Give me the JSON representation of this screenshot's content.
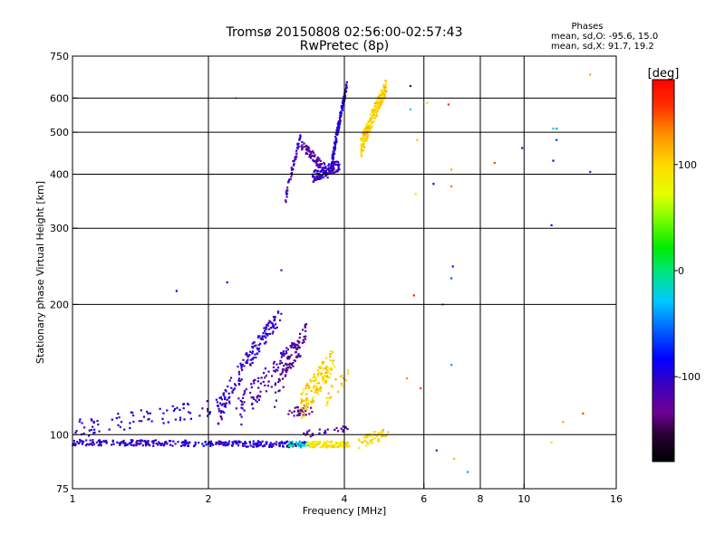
{
  "chart_data": {
    "type": "scatter",
    "title": "Tromsø 20150808 02:56:00-02:57:43",
    "subtitle": "RwPretec (8p)",
    "xlabel": "Frequency [MHz]",
    "ylabel": "Stationary phase Virtual Height [km]",
    "x_scale": "log2",
    "y_scale": "log",
    "xlim": [
      1,
      16
    ],
    "ylim": [
      75,
      750
    ],
    "x_ticks": [
      1,
      2,
      4,
      6,
      8,
      10,
      16
    ],
    "x_tick_labels": [
      "1",
      "2",
      "4",
      "6",
      "8",
      "10",
      "16"
    ],
    "x_gridlines": [
      2,
      4,
      6,
      8,
      10
    ],
    "y_ticks": [
      75,
      100,
      200,
      300,
      400,
      500,
      600,
      750
    ],
    "y_tick_labels": [
      "75",
      "100",
      "200",
      "300",
      "400",
      "500",
      "600",
      "750"
    ],
    "y_gridlines": [
      100,
      200,
      300,
      400,
      500,
      600
    ],
    "grid": true,
    "stats": {
      "heading": "Phases",
      "line_o": "mean, sd,O: -95.6, 15.0",
      "line_x": "mean, sd,X:  91.7, 19.2"
    },
    "colorbar": {
      "label": "[deg]",
      "range": [
        -180,
        180
      ],
      "ticks": [
        -100,
        0,
        100
      ],
      "tick_labels": [
        "-100",
        "0",
        "100"
      ]
    },
    "clusters": [
      {
        "f_start": 1.0,
        "f_end": 3.3,
        "h_start": 96,
        "h_end": 95,
        "jitter": 1.5,
        "n": 320,
        "phase": -100
      },
      {
        "f_start": 3.0,
        "f_end": 3.35,
        "h_start": 95,
        "h_end": 95,
        "jitter": 1.5,
        "n": 30,
        "phase": -10
      },
      {
        "f_start": 3.3,
        "f_end": 4.1,
        "h_start": 95,
        "h_end": 95,
        "jitter": 1.5,
        "n": 110,
        "phase": 90
      },
      {
        "f_start": 4.3,
        "f_end": 5.0,
        "h_start": 96,
        "h_end": 101,
        "jitter": 3,
        "n": 50,
        "phase": 95
      },
      {
        "f_start": 1.0,
        "f_end": 2.2,
        "h_start": 103,
        "h_end": 117,
        "jitter": 5,
        "n": 90,
        "phase": -100
      },
      {
        "f_start": 2.1,
        "f_end": 2.9,
        "h_start": 112,
        "h_end": 190,
        "jitter": 8,
        "n": 150,
        "phase": -105
      },
      {
        "f_start": 2.3,
        "f_end": 3.2,
        "h_start": 110,
        "h_end": 160,
        "jitter": 10,
        "n": 120,
        "phase": -115
      },
      {
        "f_start": 2.8,
        "f_end": 3.3,
        "h_start": 120,
        "h_end": 175,
        "jitter": 8,
        "n": 60,
        "phase": -130
      },
      {
        "f_start": 3.0,
        "f_end": 3.4,
        "h_start": 112,
        "h_end": 115,
        "jitter": 3,
        "n": 30,
        "phase": -125
      },
      {
        "f_start": 3.2,
        "f_end": 3.8,
        "h_start": 115,
        "h_end": 150,
        "jitter": 10,
        "n": 130,
        "phase": 100
      },
      {
        "f_start": 3.25,
        "f_end": 4.1,
        "h_start": 100,
        "h_end": 104,
        "jitter": 2,
        "n": 25,
        "phase": -115
      },
      {
        "f_start": 3.6,
        "f_end": 4.1,
        "h_start": 120,
        "h_end": 140,
        "jitter": 6,
        "n": 20,
        "phase": 100
      },
      {
        "f_start": 2.95,
        "f_end": 3.2,
        "h_start": 340,
        "h_end": 490,
        "jitter": 10,
        "n": 50,
        "phase": -110
      },
      {
        "f_start": 3.2,
        "f_end": 3.7,
        "h_start": 470,
        "h_end": 400,
        "jitter": 12,
        "n": 80,
        "phase": -120
      },
      {
        "f_start": 3.4,
        "f_end": 3.9,
        "h_start": 395,
        "h_end": 420,
        "jitter": 12,
        "n": 110,
        "phase": -105
      },
      {
        "f_start": 3.75,
        "f_end": 4.05,
        "h_start": 420,
        "h_end": 640,
        "jitter": 15,
        "n": 130,
        "phase": -100
      },
      {
        "f_start": 4.35,
        "f_end": 4.95,
        "h_start": 460,
        "h_end": 640,
        "jitter": 25,
        "n": 220,
        "phase": 100
      }
    ],
    "scatter_points": [
      {
        "x": 1.7,
        "y": 215,
        "phase": -90
      },
      {
        "x": 2.2,
        "y": 225,
        "phase": -85
      },
      {
        "x": 2.3,
        "y": 600,
        "phase": 120
      },
      {
        "x": 2.9,
        "y": 240,
        "phase": -130
      },
      {
        "x": 5.6,
        "y": 640,
        "phase": -150
      },
      {
        "x": 5.75,
        "y": 360,
        "phase": 100
      },
      {
        "x": 5.8,
        "y": 480,
        "phase": 110
      },
      {
        "x": 5.7,
        "y": 210,
        "phase": 170
      },
      {
        "x": 5.6,
        "y": 565,
        "phase": -30
      },
      {
        "x": 6.1,
        "y": 585,
        "phase": 100
      },
      {
        "x": 6.3,
        "y": 380,
        "phase": -90
      },
      {
        "x": 6.8,
        "y": 580,
        "phase": 160
      },
      {
        "x": 6.9,
        "y": 410,
        "phase": 120
      },
      {
        "x": 6.9,
        "y": 375,
        "phase": 140
      },
      {
        "x": 6.6,
        "y": 200,
        "phase": 150
      },
      {
        "x": 6.95,
        "y": 245,
        "phase": -80
      },
      {
        "x": 6.9,
        "y": 230,
        "phase": -60
      },
      {
        "x": 6.9,
        "y": 145,
        "phase": -40
      },
      {
        "x": 6.4,
        "y": 92,
        "phase": -130
      },
      {
        "x": 7.0,
        "y": 88,
        "phase": 110
      },
      {
        "x": 7.5,
        "y": 82,
        "phase": -40
      },
      {
        "x": 8.6,
        "y": 425,
        "phase": 150
      },
      {
        "x": 9.9,
        "y": 460,
        "phase": -110
      },
      {
        "x": 11.6,
        "y": 510,
        "phase": -20
      },
      {
        "x": 11.8,
        "y": 510,
        "phase": -40
      },
      {
        "x": 11.8,
        "y": 480,
        "phase": -70
      },
      {
        "x": 11.6,
        "y": 430,
        "phase": -90
      },
      {
        "x": 11.5,
        "y": 305,
        "phase": -80
      },
      {
        "x": 14.0,
        "y": 405,
        "phase": -130
      },
      {
        "x": 14.0,
        "y": 680,
        "phase": 120
      },
      {
        "x": 12.2,
        "y": 107,
        "phase": 120
      },
      {
        "x": 13.5,
        "y": 112,
        "phase": 150
      },
      {
        "x": 11.5,
        "y": 96,
        "phase": 100
      },
      {
        "x": 5.9,
        "y": 128,
        "phase": 150
      },
      {
        "x": 5.5,
        "y": 135,
        "phase": 130
      }
    ]
  }
}
